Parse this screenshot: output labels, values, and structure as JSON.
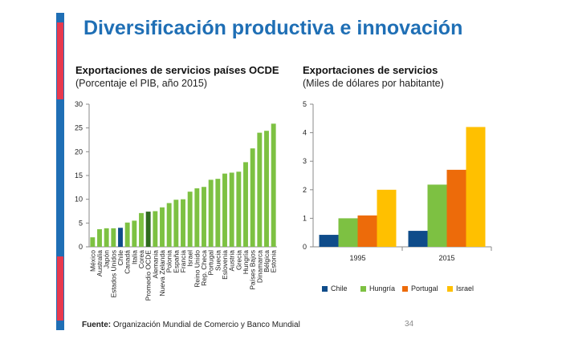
{
  "page_title": "Diversificación productiva e innovación",
  "source_label": "Fuente:",
  "source_text": "Organización Mundial de Comercio y Banco Mundial",
  "page_number": "34",
  "colors": {
    "accent_blue": "#1f6fb5",
    "accent_red": "#e8394d",
    "green": "#7dc142",
    "dark_green": "#2f6b1e",
    "blue_bar": "#0f4c8a",
    "orange": "#ed6b0a",
    "yellow": "#ffc000"
  },
  "chart_data": [
    {
      "type": "bar",
      "title": "Exportaciones de servicios países OCDE",
      "subtitle": "(Porcentaje el PIB, año 2015)",
      "ylim": [
        0,
        30
      ],
      "yticks": [
        0,
        5,
        10,
        15,
        20,
        25,
        30
      ],
      "categories": [
        "México",
        "Australia",
        "Japón",
        "Estados Unidos",
        "Chile",
        "Canadá",
        "Italia",
        "Corea",
        "Promedio OCDE",
        "Alemania",
        "Nueva Zelanda",
        "Polonia",
        "España",
        "Francia",
        "Israel",
        "Reino Unido",
        "Rep. Checa",
        "Portugal",
        "Suecia",
        "Eslovenia",
        "Austria",
        "Grecia",
        "Hungría",
        "Países Bajos",
        "Dinamarca",
        "Bélgica",
        "Estonia"
      ],
      "values": [
        2.0,
        3.7,
        3.9,
        3.9,
        4.0,
        5.1,
        5.5,
        7.1,
        7.4,
        7.5,
        8.3,
        9.2,
        9.9,
        10.0,
        11.6,
        12.3,
        12.6,
        14.1,
        14.3,
        15.4,
        15.6,
        15.8,
        17.8,
        20.7,
        24.0,
        24.4,
        25.9
      ],
      "highlight": {
        "Chile": "#0f4c8a",
        "Promedio OCDE": "#2f6b1e"
      }
    },
    {
      "type": "bar",
      "title": "Exportaciones de servicios",
      "subtitle": "(Miles de dólares por habitante)",
      "ylim": [
        0,
        5
      ],
      "yticks": [
        0,
        1,
        2,
        3,
        4,
        5
      ],
      "categories": [
        "1995",
        "2015"
      ],
      "series": [
        {
          "name": "Chile",
          "color": "#0f4c8a",
          "values": [
            0.42,
            0.56
          ]
        },
        {
          "name": "Hungría",
          "color": "#7dc142",
          "values": [
            1.0,
            2.18
          ]
        },
        {
          "name": "Portugal",
          "color": "#ed6b0a",
          "values": [
            1.1,
            2.7
          ]
        },
        {
          "name": "Israel",
          "color": "#ffc000",
          "values": [
            2.0,
            4.2
          ]
        }
      ]
    }
  ]
}
